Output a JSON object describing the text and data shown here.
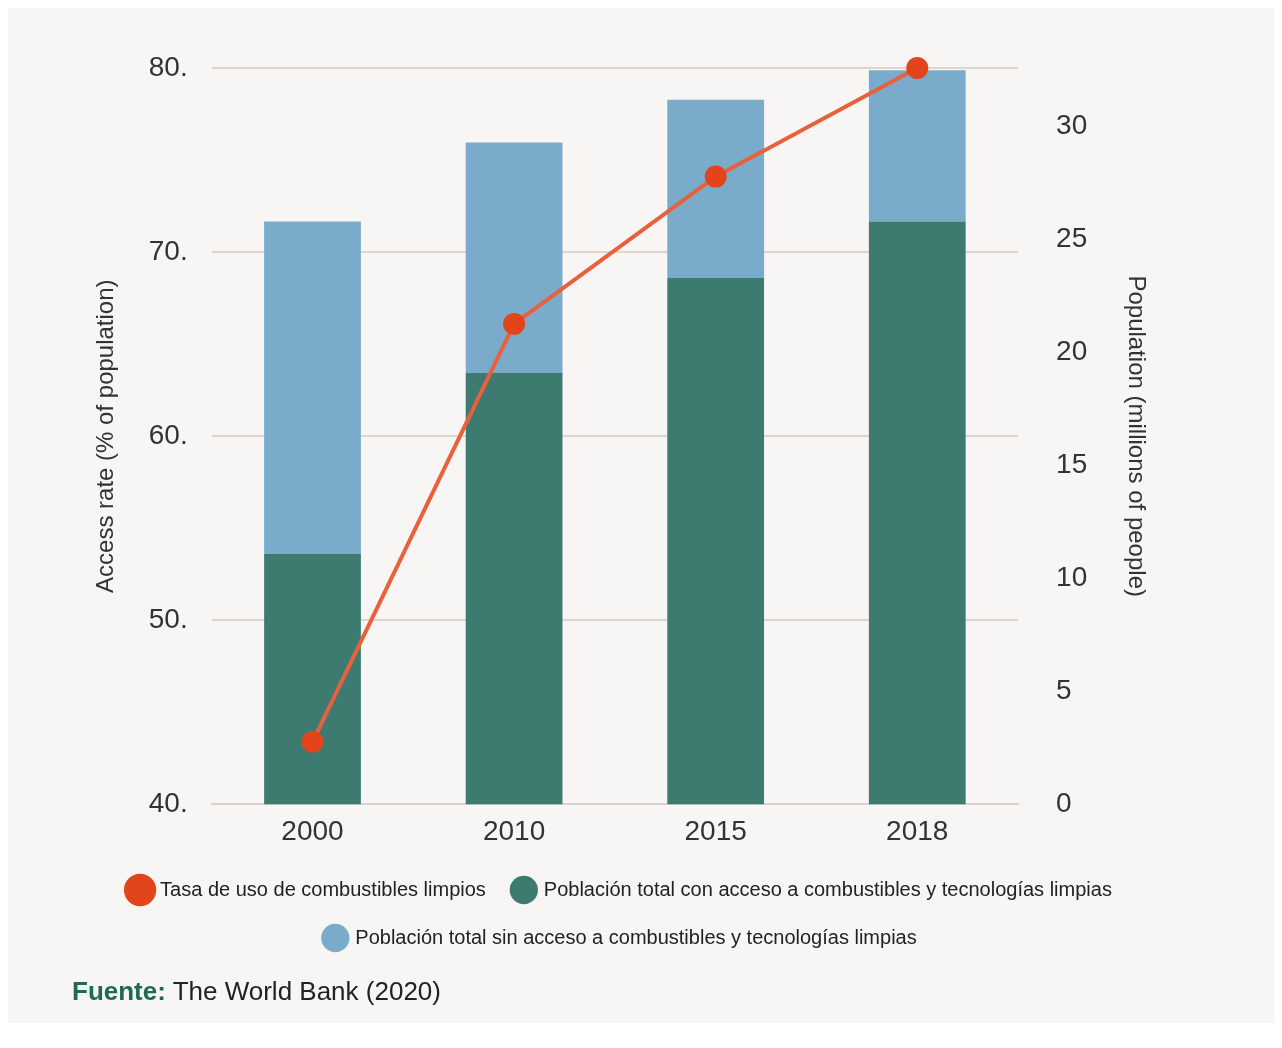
{
  "chart_data": {
    "type": "bar",
    "categories": [
      "2000",
      "2010",
      "2015",
      "2018"
    ],
    "stacked": true,
    "ylabel": "Access rate (% of population)",
    "y2label": "Population (millions of people)",
    "series": [
      {
        "name": "Tasa de uso de combustibles limpios",
        "type": "line",
        "color": "#e8603c",
        "axis": "y",
        "marker": "circle",
        "values": [
          43.4,
          66.1,
          74.1,
          80
        ]
      },
      {
        "name": "Población total con acceso a combustibles y tecnologías limpias",
        "color": "#3d7b70",
        "axis": "y2",
        "values": [
          11.1,
          19.1,
          23.3,
          25.8
        ]
      },
      {
        "name": "Población total sin acceso a combustibles y tecnologías limpias",
        "color": "#7aabcb",
        "axis": "y2",
        "values": [
          14.7,
          10.2,
          7.9,
          6.7
        ]
      }
    ],
    "ylim": [
      40,
      80
    ],
    "yticks": [
      {
        "value": 40,
        "label": "40."
      },
      {
        "value": 50,
        "label": "50."
      },
      {
        "value": 60,
        "label": "60."
      },
      {
        "value": 70,
        "label": "70."
      },
      {
        "value": 80,
        "label": "80."
      }
    ],
    "y2lim": [
      0,
      32.6
    ],
    "y2ticks": [
      0,
      5,
      10,
      15,
      20,
      25,
      30
    ],
    "grid": "y",
    "legend": "bottom",
    "annotations": [
      "Fuente: The World Bank (2020)"
    ]
  }
}
